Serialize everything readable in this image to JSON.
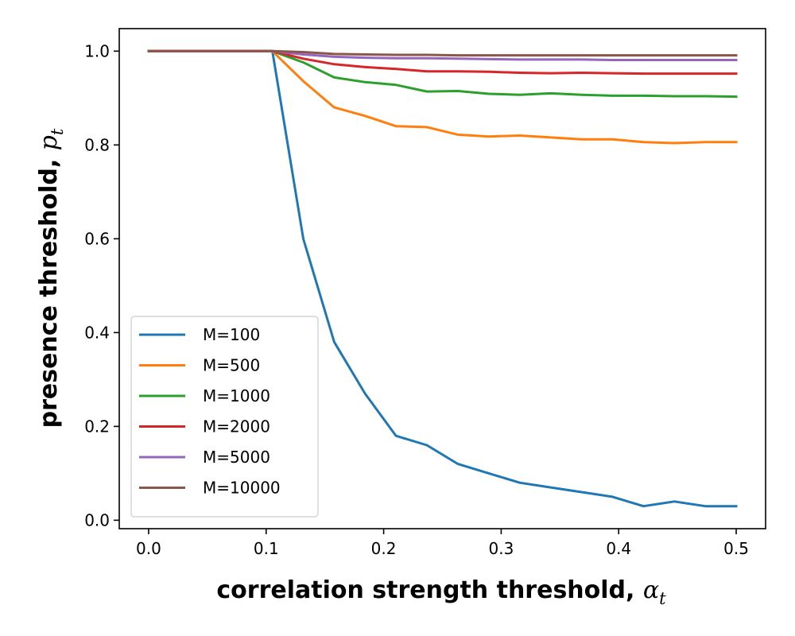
{
  "chart_data": {
    "type": "line",
    "title": "",
    "xlabel": "correlation strength threshold, ",
    "xlabel_symbol": "α",
    "xlabel_subscript": "t",
    "ylabel": "presence threshold, ",
    "ylabel_symbol": "p",
    "ylabel_subscript": "t",
    "xlim": [
      -0.025,
      0.525
    ],
    "ylim": [
      -0.018,
      1.048
    ],
    "xticks": [
      0.0,
      0.1,
      0.2,
      0.3,
      0.4,
      0.5
    ],
    "xtick_labels": [
      "0.0",
      "0.1",
      "0.2",
      "0.3",
      "0.4",
      "0.5"
    ],
    "yticks": [
      0.0,
      0.2,
      0.4,
      0.6,
      0.8,
      1.0
    ],
    "ytick_labels": [
      "0.0",
      "0.2",
      "0.4",
      "0.6",
      "0.8",
      "1.0"
    ],
    "grid": false,
    "legend_position": "lower-left",
    "x": [
      0.0,
      0.0263,
      0.0526,
      0.0789,
      0.1053,
      0.1316,
      0.1579,
      0.1842,
      0.2105,
      0.2368,
      0.2632,
      0.2895,
      0.3158,
      0.3421,
      0.3684,
      0.3947,
      0.4211,
      0.4474,
      0.4737,
      0.5
    ],
    "series": [
      {
        "name": "M=100",
        "color": "#1f77b4",
        "values": [
          1.0,
          1.0,
          1.0,
          1.0,
          1.0,
          0.6,
          0.38,
          0.27,
          0.18,
          0.16,
          0.12,
          0.1,
          0.08,
          0.07,
          0.06,
          0.05,
          0.03,
          0.04,
          0.03,
          0.03
        ]
      },
      {
        "name": "M=500",
        "color": "#ff7f0e",
        "values": [
          1.0,
          1.0,
          1.0,
          1.0,
          1.0,
          0.936,
          0.88,
          0.862,
          0.84,
          0.838,
          0.822,
          0.818,
          0.82,
          0.816,
          0.812,
          0.812,
          0.806,
          0.804,
          0.806,
          0.806
        ]
      },
      {
        "name": "M=1000",
        "color": "#2ca02c",
        "values": [
          1.0,
          1.0,
          1.0,
          1.0,
          1.0,
          0.976,
          0.944,
          0.934,
          0.928,
          0.914,
          0.915,
          0.909,
          0.907,
          0.91,
          0.907,
          0.905,
          0.905,
          0.904,
          0.904,
          0.903
        ]
      },
      {
        "name": "M=2000",
        "color": "#d62728",
        "values": [
          1.0,
          1.0,
          1.0,
          1.0,
          1.0,
          0.984,
          0.972,
          0.966,
          0.962,
          0.957,
          0.957,
          0.956,
          0.954,
          0.953,
          0.954,
          0.953,
          0.952,
          0.952,
          0.952,
          0.952
        ]
      },
      {
        "name": "M=5000",
        "color": "#9467bd",
        "values": [
          1.0,
          1.0,
          1.0,
          1.0,
          1.0,
          0.993,
          0.988,
          0.986,
          0.985,
          0.985,
          0.984,
          0.983,
          0.982,
          0.982,
          0.982,
          0.981,
          0.981,
          0.981,
          0.981,
          0.981
        ]
      },
      {
        "name": "M=10000",
        "color": "#8c564b",
        "values": [
          1.0,
          1.0,
          1.0,
          1.0,
          1.0,
          0.998,
          0.994,
          0.993,
          0.992,
          0.992,
          0.991,
          0.991,
          0.991,
          0.991,
          0.991,
          0.991,
          0.991,
          0.991,
          0.991,
          0.991
        ]
      }
    ]
  }
}
